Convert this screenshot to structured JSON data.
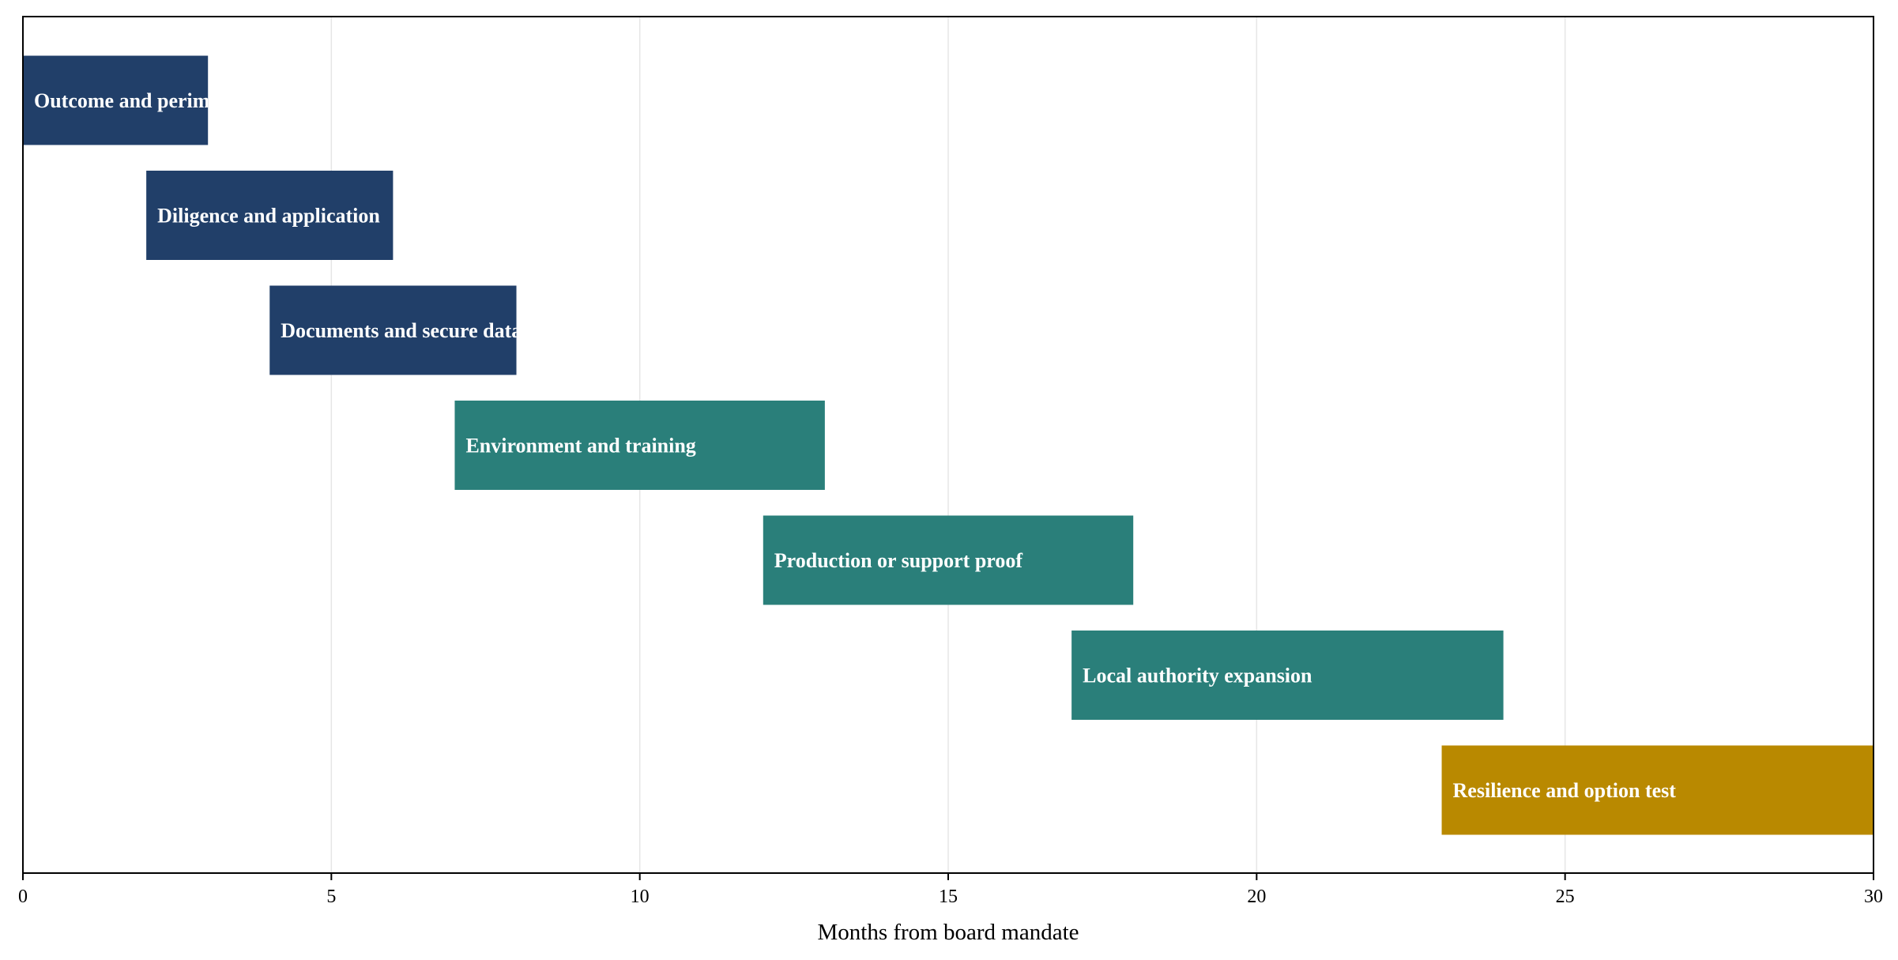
{
  "chart_data": {
    "type": "bar",
    "orientation": "horizontal-gantt",
    "xlabel": "Months from board mandate",
    "xlim": [
      0,
      30
    ],
    "xticks": [
      0,
      5,
      10,
      15,
      20,
      25,
      30
    ],
    "grid": "vertical",
    "tasks": [
      {
        "label": "Outcome and perimeter",
        "start": 0,
        "end": 3,
        "color": "#213F69"
      },
      {
        "label": "Diligence and application",
        "start": 2,
        "end": 6,
        "color": "#213F69"
      },
      {
        "label": "Documents and secure data",
        "start": 4,
        "end": 8,
        "color": "#213F69"
      },
      {
        "label": "Environment and training",
        "start": 7,
        "end": 13,
        "color": "#2A7F7A"
      },
      {
        "label": "Production or support proof",
        "start": 12,
        "end": 18,
        "color": "#2A7F7A"
      },
      {
        "label": "Local authority expansion",
        "start": 17,
        "end": 24,
        "color": "#2A7F7A"
      },
      {
        "label": "Resilience and option test",
        "start": 23,
        "end": 30,
        "color": "#B98900"
      }
    ]
  }
}
